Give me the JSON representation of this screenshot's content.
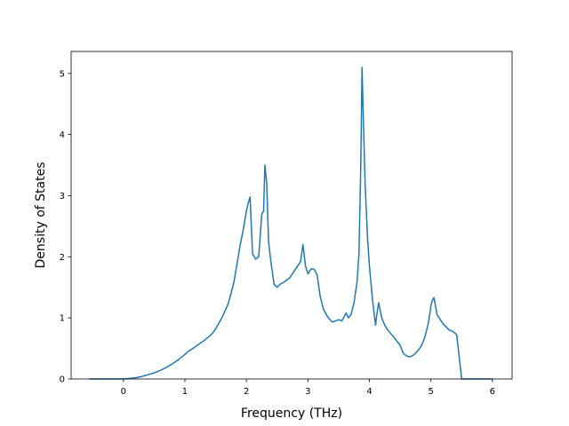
{
  "chart_data": {
    "type": "line",
    "title": "",
    "xlabel": "Frequency (THz)",
    "ylabel": "Density of States",
    "xlim": [
      -0.85,
      6.32
    ],
    "ylim": [
      0,
      5.36
    ],
    "xticks": [
      0,
      1,
      2,
      3,
      4,
      5,
      6
    ],
    "yticks": [
      0,
      1,
      2,
      3,
      4,
      5
    ],
    "grid": false,
    "legend": "none",
    "series": [
      {
        "color": "#1f77b4",
        "x": [
          -0.55,
          -0.4,
          -0.2,
          0,
          0.1,
          0.2,
          0.3,
          0.4,
          0.5,
          0.6,
          0.7,
          0.8,
          0.9,
          1.0,
          1.05,
          1.1,
          1.2,
          1.3,
          1.4,
          1.45,
          1.5,
          1.6,
          1.7,
          1.75,
          1.8,
          1.9,
          1.95,
          2.0,
          2.03,
          2.06,
          2.1,
          2.15,
          2.2,
          2.25,
          2.28,
          2.3,
          2.33,
          2.36,
          2.4,
          2.45,
          2.5,
          2.55,
          2.6,
          2.7,
          2.8,
          2.88,
          2.92,
          2.96,
          3.0,
          3.05,
          3.1,
          3.15,
          3.2,
          3.25,
          3.3,
          3.35,
          3.4,
          3.45,
          3.5,
          3.55,
          3.58,
          3.62,
          3.66,
          3.7,
          3.75,
          3.8,
          3.83,
          3.86,
          3.88,
          3.9,
          3.93,
          3.97,
          4.0,
          4.05,
          4.1,
          4.12,
          4.15,
          4.2,
          4.25,
          4.3,
          4.4,
          4.5,
          4.55,
          4.6,
          4.65,
          4.7,
          4.75,
          4.8,
          4.85,
          4.9,
          4.95,
          4.98,
          5.0,
          5.02,
          5.05,
          5.1,
          5.2,
          5.3,
          5.35,
          5.38,
          5.42,
          5.45,
          5.5,
          5.7,
          6.0
        ],
        "values": [
          0,
          0,
          0,
          0,
          0.01,
          0.02,
          0.04,
          0.07,
          0.1,
          0.14,
          0.19,
          0.25,
          0.32,
          0.4,
          0.45,
          0.48,
          0.55,
          0.62,
          0.7,
          0.75,
          0.82,
          1.0,
          1.22,
          1.4,
          1.6,
          2.2,
          2.45,
          2.75,
          2.88,
          2.98,
          2.05,
          1.96,
          2.0,
          2.7,
          2.75,
          3.5,
          3.2,
          2.25,
          1.9,
          1.55,
          1.5,
          1.55,
          1.58,
          1.65,
          1.8,
          1.92,
          2.2,
          1.85,
          1.72,
          1.8,
          1.8,
          1.7,
          1.35,
          1.15,
          1.05,
          0.98,
          0.93,
          0.95,
          0.97,
          0.95,
          1.0,
          1.08,
          1.0,
          1.05,
          1.25,
          1.6,
          2.05,
          3.5,
          5.1,
          4.3,
          3.2,
          2.3,
          1.85,
          1.3,
          0.88,
          1.05,
          1.25,
          1.0,
          0.88,
          0.8,
          0.68,
          0.55,
          0.42,
          0.38,
          0.36,
          0.38,
          0.42,
          0.48,
          0.55,
          0.68,
          0.88,
          1.05,
          1.2,
          1.28,
          1.33,
          1.05,
          0.9,
          0.8,
          0.78,
          0.76,
          0.72,
          0.45,
          0,
          0,
          0
        ]
      }
    ]
  }
}
